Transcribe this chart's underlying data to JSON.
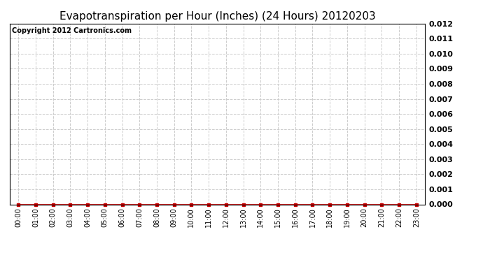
{
  "title": "Evapotranspiration per Hour (Inches) (24 Hours) 20120203",
  "copyright_text": "Copyright 2012 Cartronics.com",
  "x_labels": [
    "00:00",
    "01:00",
    "02:00",
    "03:00",
    "04:00",
    "05:00",
    "06:00",
    "07:00",
    "08:00",
    "09:00",
    "10:00",
    "11:00",
    "12:00",
    "13:00",
    "14:00",
    "15:00",
    "16:00",
    "17:00",
    "18:00",
    "19:00",
    "20:00",
    "21:00",
    "22:00",
    "23:00"
  ],
  "y_values": [
    0.0,
    0.0,
    0.0,
    0.0,
    0.0,
    0.0,
    0.0,
    0.0,
    0.0,
    0.0,
    0.0,
    0.0,
    0.0,
    0.0,
    0.0,
    0.0,
    0.0,
    0.0,
    0.0,
    0.0,
    0.0,
    0.0,
    0.0,
    0.0
  ],
  "ylim": [
    0.0,
    0.012
  ],
  "yticks": [
    0.0,
    0.001,
    0.002,
    0.003,
    0.004,
    0.005,
    0.006,
    0.007,
    0.008,
    0.009,
    0.01,
    0.011,
    0.012
  ],
  "line_color": "#cc0000",
  "marker_color": "#cc0000",
  "marker": "s",
  "marker_size": 3,
  "grid_color": "#cccccc",
  "grid_linestyle": "--",
  "background_color": "#ffffff",
  "plot_bg_color": "#ffffff",
  "title_fontsize": 11,
  "copyright_fontsize": 7,
  "tick_fontsize": 8,
  "xtick_fontsize": 7
}
